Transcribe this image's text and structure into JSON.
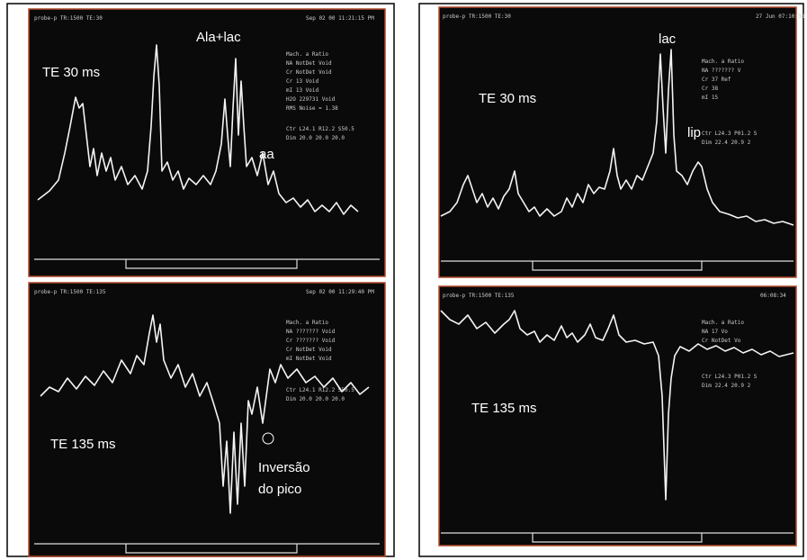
{
  "panels": {
    "left_top": {
      "echo_time": "TE 30 ms",
      "annotations": [
        "Ala+lac",
        "aa"
      ]
    },
    "left_bottom": {
      "echo_time": "TE 135 ms",
      "annotations": [
        "Inversão",
        "do pico"
      ]
    },
    "right_top": {
      "echo_time": "TE 30 ms",
      "annotations": [
        "lac",
        "lip"
      ]
    },
    "right_bottom": {
      "echo_time": "TE 135 ms",
      "annotations": []
    }
  }
}
